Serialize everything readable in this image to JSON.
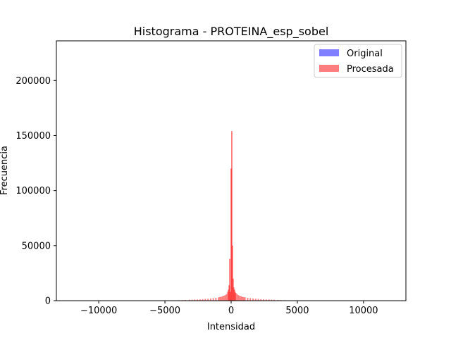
{
  "chart_data": {
    "type": "bar",
    "title": "Histograma - PROTEINA_esp_sobel",
    "xlabel": "Intensidad",
    "ylabel": "Frecuencia",
    "xlim": [
      -13200,
      13200
    ],
    "ylim": [
      0,
      236000
    ],
    "xticks": [
      -10000,
      -5000,
      0,
      5000,
      10000
    ],
    "xtick_labels": [
      "−10000",
      "−5000",
      "0",
      "5000",
      "10000"
    ],
    "yticks": [
      0,
      50000,
      100000,
      150000,
      200000
    ],
    "ytick_labels": [
      "0",
      "50000",
      "100000",
      "150000",
      "200000"
    ],
    "grid": false,
    "legend_position": "top-right",
    "series": [
      {
        "name": "Original",
        "color": "#0000ff",
        "alpha": 0.5,
        "bins": []
      },
      {
        "name": "Procesada",
        "color": "#ff0000",
        "alpha": 0.5,
        "bin_width": 100,
        "bins": [
          [
            -4500,
            200
          ],
          [
            -4300,
            300
          ],
          [
            -4000,
            400
          ],
          [
            -3700,
            500
          ],
          [
            -3500,
            600
          ],
          [
            -3200,
            800
          ],
          [
            -3000,
            900
          ],
          [
            -2800,
            1000
          ],
          [
            -2600,
            1100
          ],
          [
            -2400,
            1200
          ],
          [
            -2200,
            1400
          ],
          [
            -2000,
            1600
          ],
          [
            -1800,
            1800
          ],
          [
            -1600,
            2000
          ],
          [
            -1400,
            2300
          ],
          [
            -1200,
            2600
          ],
          [
            -1000,
            3000
          ],
          [
            -900,
            3300
          ],
          [
            -800,
            3600
          ],
          [
            -700,
            4000
          ],
          [
            -600,
            4500
          ],
          [
            -500,
            5000
          ],
          [
            -400,
            6000
          ],
          [
            -300,
            8000
          ],
          [
            -250,
            10000
          ],
          [
            -200,
            14000
          ],
          [
            -150,
            38000
          ],
          [
            -100,
            8000
          ],
          [
            -50,
            120000
          ],
          [
            0,
            154000
          ],
          [
            50,
            50000
          ],
          [
            100,
            20000
          ],
          [
            150,
            12000
          ],
          [
            200,
            10000
          ],
          [
            250,
            8000
          ],
          [
            300,
            7000
          ],
          [
            400,
            6000
          ],
          [
            500,
            5000
          ],
          [
            600,
            4500
          ],
          [
            700,
            4000
          ],
          [
            800,
            3500
          ],
          [
            900,
            3200
          ],
          [
            1000,
            3000
          ],
          [
            1200,
            2600
          ],
          [
            1400,
            2300
          ],
          [
            1600,
            2000
          ],
          [
            1800,
            1800
          ],
          [
            2000,
            1600
          ],
          [
            2200,
            1400
          ],
          [
            2400,
            1200
          ],
          [
            2600,
            1100
          ],
          [
            2800,
            1000
          ],
          [
            3000,
            900
          ],
          [
            3200,
            800
          ],
          [
            3500,
            600
          ],
          [
            3700,
            500
          ],
          [
            4000,
            400
          ],
          [
            4300,
            300
          ],
          [
            4500,
            200
          ]
        ]
      }
    ]
  }
}
